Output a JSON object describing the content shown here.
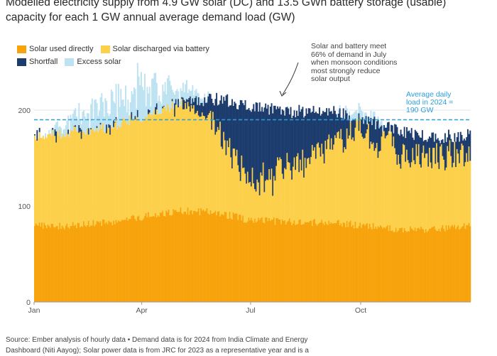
{
  "header": {
    "title_line1": "Modelled electricity supply from 4.9 GW solar (DC) and 13.5 GWh battery storage (usable)",
    "title_line2": "capacity for each 1 GW annual average demand load (GW)"
  },
  "footer": {
    "source_line1": "Source: Ember analysis of hourly data • Demand data is for 2024 from India Climate and Energy",
    "source_line2": "Dashboard (Niti Aayog); Solar power data is from JRC for 2023 as a representative year and is a"
  },
  "annotations": {
    "monsoon_line1": "Solar and battery meet",
    "monsoon_line2": "66% of demand  in July",
    "monsoon_line3": "when monsoon conditions",
    "monsoon_line4": "most strongly reduce",
    "monsoon_line5": "solar output",
    "avg_line1": "Average daily",
    "avg_line2": "load in 2024 =",
    "avg_line3": "190 GW"
  },
  "colors": {
    "solar_direct": "#f7a30c",
    "solar_battery": "#fcd04b",
    "shortfall": "#1d3c6e",
    "excess": "#bde3f2",
    "avg_line": "#2a9fd8",
    "gridline": "#e4e4e4"
  },
  "chart_data": {
    "type": "bar",
    "stacked": true,
    "ylim": [
      0,
      220
    ],
    "yticks": [
      "0",
      "100",
      "200"
    ],
    "ytick_values": [
      0,
      100,
      200
    ],
    "xticks": [
      "Jan",
      "Apr",
      "Jul",
      "Oct"
    ],
    "xtick_positions": [
      0,
      90,
      181,
      273
    ],
    "days": 365,
    "average_load": 190,
    "legend": [
      {
        "name": "Solar used directly",
        "color": "#f7a30c"
      },
      {
        "name": "Solar discharged via battery",
        "color": "#fcd04b"
      },
      {
        "name": "Shortfall",
        "color": "#1d3c6e"
      },
      {
        "name": "Excess solar",
        "color": "#bde3f2"
      }
    ],
    "series_profiles": {
      "description_free": true,
      "day_points": [
        0,
        31,
        59,
        90,
        120,
        151,
        181,
        212,
        243,
        273,
        304,
        334,
        364
      ],
      "demand": [
        175,
        178,
        183,
        195,
        208,
        212,
        205,
        198,
        200,
        192,
        178,
        172,
        175
      ],
      "solar_direct": [
        79,
        80,
        83,
        89,
        95,
        94,
        85,
        84,
        83,
        80,
        76,
        76,
        79
      ],
      "supply_total": [
        175,
        178,
        183,
        195,
        205,
        190,
        140,
        150,
        170,
        190,
        165,
        160,
        165
      ],
      "excess": [
        0,
        12,
        28,
        35,
        18,
        0,
        0,
        0,
        0,
        8,
        0,
        0,
        0
      ]
    }
  }
}
